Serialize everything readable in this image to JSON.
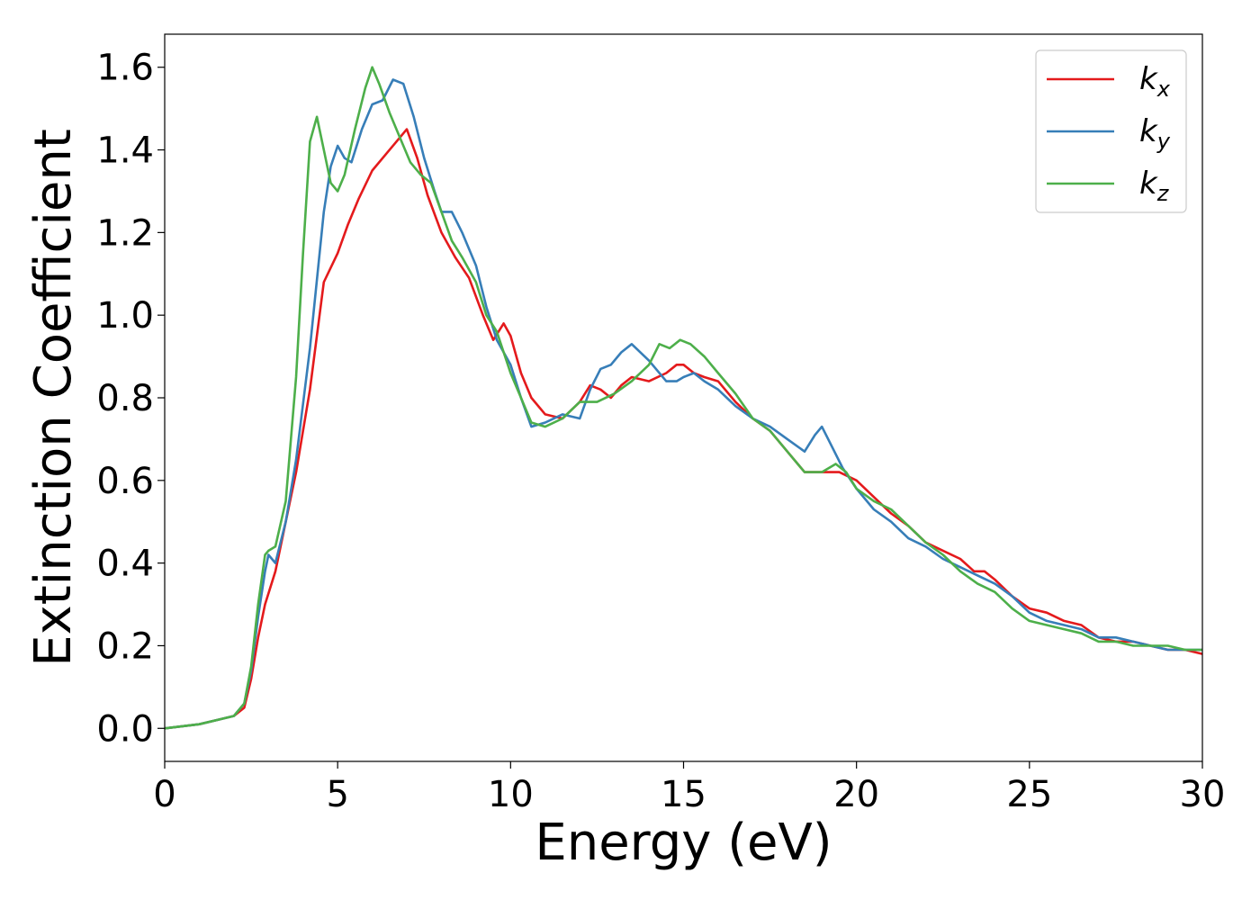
{
  "chart_data": {
    "type": "line",
    "xlabel": "Energy (eV)",
    "ylabel": "Extinction Coefficient",
    "xlim": [
      0,
      30
    ],
    "ylim": [
      -0.08,
      1.68
    ],
    "xticks": [
      0,
      5,
      10,
      15,
      20,
      25,
      30
    ],
    "yticks": [
      0.0,
      0.2,
      0.4,
      0.6,
      0.8,
      1.0,
      1.2,
      1.4,
      1.6
    ],
    "grid": false,
    "legend_position": "top-right",
    "series": [
      {
        "name": "k",
        "subscript": "x",
        "color": "#e41a1c",
        "x": [
          0,
          1,
          1.5,
          2,
          2.3,
          2.5,
          2.7,
          2.9,
          3.2,
          3.5,
          3.8,
          4.2,
          4.6,
          5.0,
          5.3,
          5.6,
          6.0,
          6.4,
          6.8,
          7.0,
          7.3,
          7.6,
          8.0,
          8.4,
          8.8,
          9.2,
          9.5,
          9.8,
          10.0,
          10.3,
          10.6,
          11.0,
          11.5,
          12.0,
          12.3,
          12.6,
          12.9,
          13.2,
          13.5,
          14.0,
          14.5,
          14.8,
          15.0,
          15.3,
          15.6,
          16.0,
          16.5,
          17.0,
          17.5,
          18.0,
          18.5,
          19.0,
          19.5,
          20.0,
          20.5,
          21.0,
          21.5,
          22.0,
          22.5,
          23.0,
          23.4,
          23.7,
          24.0,
          24.5,
          25.0,
          25.5,
          26.0,
          26.5,
          27.0,
          27.5,
          28.0,
          28.5,
          29.0,
          29.5,
          30.0
        ],
        "y": [
          0.0,
          0.01,
          0.02,
          0.03,
          0.05,
          0.12,
          0.22,
          0.3,
          0.38,
          0.5,
          0.62,
          0.82,
          1.08,
          1.15,
          1.22,
          1.28,
          1.35,
          1.39,
          1.43,
          1.45,
          1.38,
          1.29,
          1.2,
          1.14,
          1.09,
          1.0,
          0.94,
          0.98,
          0.95,
          0.86,
          0.8,
          0.76,
          0.75,
          0.79,
          0.83,
          0.82,
          0.8,
          0.83,
          0.85,
          0.84,
          0.86,
          0.88,
          0.88,
          0.86,
          0.85,
          0.84,
          0.79,
          0.75,
          0.72,
          0.67,
          0.62,
          0.62,
          0.62,
          0.6,
          0.56,
          0.52,
          0.49,
          0.45,
          0.43,
          0.41,
          0.38,
          0.38,
          0.36,
          0.32,
          0.29,
          0.28,
          0.26,
          0.25,
          0.22,
          0.21,
          0.21,
          0.2,
          0.19,
          0.19,
          0.18
        ]
      },
      {
        "name": "k",
        "subscript": "y",
        "color": "#377eb8",
        "x": [
          0,
          1,
          1.5,
          2,
          2.3,
          2.5,
          2.7,
          2.9,
          3.0,
          3.2,
          3.5,
          3.8,
          4.2,
          4.6,
          4.8,
          5.0,
          5.2,
          5.4,
          5.7,
          6.0,
          6.3,
          6.6,
          6.9,
          7.2,
          7.5,
          7.8,
          8.0,
          8.3,
          8.6,
          9.0,
          9.3,
          9.6,
          10.0,
          10.3,
          10.6,
          11.0,
          11.5,
          12.0,
          12.3,
          12.6,
          12.9,
          13.2,
          13.5,
          14.0,
          14.5,
          14.8,
          15.0,
          15.3,
          15.6,
          16.0,
          16.5,
          17.0,
          17.5,
          18.0,
          18.5,
          18.8,
          19.0,
          19.3,
          19.6,
          20.0,
          20.5,
          21.0,
          21.5,
          22.0,
          22.5,
          23.0,
          23.5,
          24.0,
          24.5,
          25.0,
          25.5,
          26.0,
          26.5,
          27.0,
          27.5,
          28.0,
          28.5,
          29.0,
          29.5,
          30.0
        ],
        "y": [
          0.0,
          0.01,
          0.02,
          0.03,
          0.06,
          0.14,
          0.27,
          0.38,
          0.42,
          0.4,
          0.5,
          0.65,
          0.92,
          1.25,
          1.36,
          1.41,
          1.38,
          1.37,
          1.45,
          1.51,
          1.52,
          1.57,
          1.56,
          1.48,
          1.38,
          1.3,
          1.25,
          1.25,
          1.2,
          1.12,
          1.02,
          0.94,
          0.88,
          0.8,
          0.73,
          0.74,
          0.76,
          0.75,
          0.82,
          0.87,
          0.88,
          0.91,
          0.93,
          0.89,
          0.84,
          0.84,
          0.85,
          0.86,
          0.84,
          0.82,
          0.78,
          0.75,
          0.73,
          0.7,
          0.67,
          0.71,
          0.73,
          0.68,
          0.63,
          0.58,
          0.53,
          0.5,
          0.46,
          0.44,
          0.41,
          0.39,
          0.37,
          0.35,
          0.32,
          0.28,
          0.26,
          0.25,
          0.24,
          0.22,
          0.22,
          0.21,
          0.2,
          0.19,
          0.19,
          0.19
        ]
      },
      {
        "name": "k",
        "subscript": "z",
        "color": "#4daf4a",
        "x": [
          0,
          1,
          1.5,
          2,
          2.3,
          2.5,
          2.7,
          2.9,
          3.0,
          3.2,
          3.5,
          3.8,
          4.0,
          4.2,
          4.4,
          4.6,
          4.8,
          5.0,
          5.2,
          5.5,
          5.8,
          6.0,
          6.2,
          6.5,
          6.8,
          7.1,
          7.4,
          7.7,
          8.0,
          8.3,
          8.6,
          9.0,
          9.3,
          9.6,
          10.0,
          10.3,
          10.6,
          11.0,
          11.5,
          12.0,
          12.5,
          13.0,
          13.5,
          14.0,
          14.3,
          14.6,
          14.9,
          15.2,
          15.6,
          16.0,
          16.5,
          17.0,
          17.5,
          18.0,
          18.5,
          19.0,
          19.4,
          19.7,
          20.0,
          20.5,
          21.0,
          21.5,
          22.0,
          22.5,
          23.0,
          23.5,
          24.0,
          24.5,
          25.0,
          25.5,
          26.0,
          26.5,
          27.0,
          27.5,
          28.0,
          28.5,
          29.0,
          29.5,
          30.0
        ],
        "y": [
          0.0,
          0.01,
          0.02,
          0.03,
          0.06,
          0.15,
          0.3,
          0.42,
          0.43,
          0.44,
          0.55,
          0.85,
          1.15,
          1.42,
          1.48,
          1.4,
          1.32,
          1.3,
          1.34,
          1.45,
          1.55,
          1.6,
          1.56,
          1.49,
          1.43,
          1.37,
          1.34,
          1.32,
          1.25,
          1.18,
          1.14,
          1.08,
          1.0,
          0.96,
          0.86,
          0.8,
          0.74,
          0.73,
          0.75,
          0.79,
          0.79,
          0.81,
          0.84,
          0.88,
          0.93,
          0.92,
          0.94,
          0.93,
          0.9,
          0.86,
          0.81,
          0.75,
          0.72,
          0.67,
          0.62,
          0.62,
          0.64,
          0.62,
          0.58,
          0.55,
          0.53,
          0.49,
          0.45,
          0.42,
          0.38,
          0.35,
          0.33,
          0.29,
          0.26,
          0.25,
          0.24,
          0.23,
          0.21,
          0.21,
          0.2,
          0.2,
          0.2,
          0.19,
          0.19
        ]
      }
    ]
  }
}
